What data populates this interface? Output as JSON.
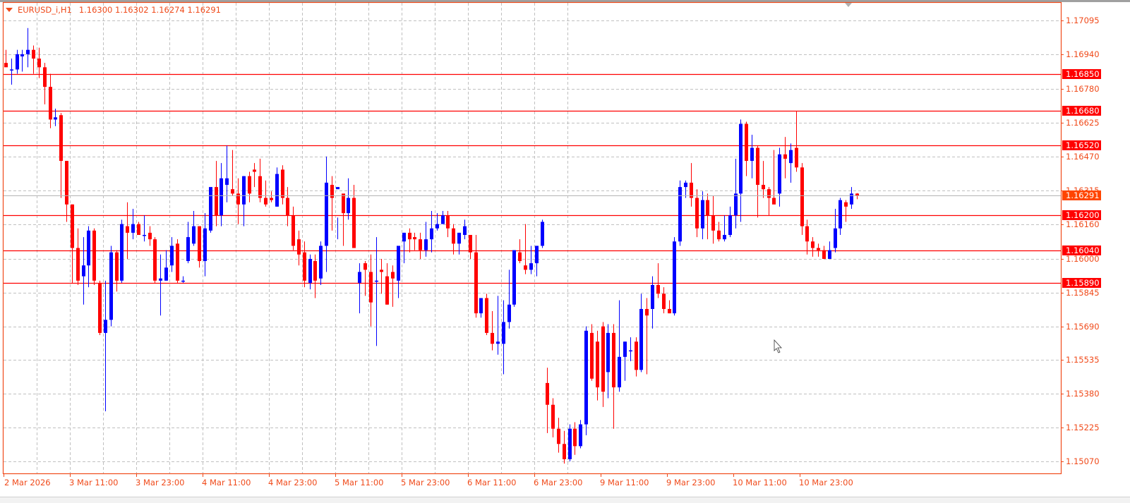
{
  "window": {
    "symbol": "EURUSD_i",
    "timeframe": "H1",
    "title_label": "EURUSD_i,H1",
    "ohlc_label": "1.16300 1.16302 1.16274 1.16291",
    "open": "1.16300",
    "high": "1.16302",
    "low": "1.16274",
    "close": "1.16291"
  },
  "colors": {
    "frame": "#f04a1a",
    "bull": "#0000ff",
    "bear": "#ff0000",
    "level_line": "#ff0000",
    "level_label_bg": "#ff0000",
    "bid_label_bg": "#ff4500",
    "grid": "#c0c0c0",
    "bid_line": "#b4b4b4"
  },
  "chart_data": {
    "type": "candlestick",
    "title": "EURUSD_i,H1",
    "xlabel": "",
    "ylabel": "",
    "ylim": [
      1.1499,
      1.1721
    ],
    "grid": true,
    "y_ticks": [
      "1.17095",
      "1.16940",
      "1.16780",
      "1.16625",
      "1.16470",
      "1.16315",
      "1.16160",
      "1.16000",
      "1.15845",
      "1.15690",
      "1.15535",
      "1.15380",
      "1.15225",
      "1.15070"
    ],
    "x_ticks": [
      "2 Mar 2026",
      "3 Mar 11:00",
      "3 Mar 23:00",
      "4 Mar 11:00",
      "4 Mar 23:00",
      "5 Mar 11:00",
      "5 Mar 23:00",
      "6 Mar 11:00",
      "6 Mar 23:00",
      "9 Mar 11:00",
      "9 Mar 23:00",
      "10 Mar 11:00",
      "10 Mar 23:00"
    ],
    "horizontal_levels": [
      "1.16850",
      "1.16680",
      "1.16520",
      "1.16200",
      "1.16040",
      "1.15890"
    ],
    "current_price": "1.16291",
    "candles": [
      {
        "o": 1.169,
        "h": 1.1696,
        "l": 1.1689,
        "c": 1.1688
      },
      {
        "o": 1.1687,
        "h": 1.1692,
        "l": 1.168,
        "c": 1.1687
      },
      {
        "o": 1.1687,
        "h": 1.1696,
        "l": 1.1685,
        "c": 1.1694
      },
      {
        "o": 1.1693,
        "h": 1.1696,
        "l": 1.1686,
        "c": 1.1694
      },
      {
        "o": 1.1694,
        "h": 1.1706,
        "l": 1.1688,
        "c": 1.1696
      },
      {
        "o": 1.1696,
        "h": 1.1698,
        "l": 1.1685,
        "c": 1.1692
      },
      {
        "o": 1.1692,
        "h": 1.1697,
        "l": 1.1683,
        "c": 1.1688
      },
      {
        "o": 1.1688,
        "h": 1.169,
        "l": 1.1671,
        "c": 1.1679
      },
      {
        "o": 1.1679,
        "h": 1.1685,
        "l": 1.166,
        "c": 1.1664
      },
      {
        "o": 1.1664,
        "h": 1.1669,
        "l": 1.1661,
        "c": 1.1665
      },
      {
        "o": 1.1666,
        "h": 1.1667,
        "l": 1.1628,
        "c": 1.1645
      },
      {
        "o": 1.1645,
        "h": 1.1645,
        "l": 1.1617,
        "c": 1.1625
      },
      {
        "o": 1.1625,
        "h": 1.1625,
        "l": 1.1589,
        "c": 1.1605
      },
      {
        "o": 1.1605,
        "h": 1.1614,
        "l": 1.1588,
        "c": 1.159
      },
      {
        "o": 1.1592,
        "h": 1.161,
        "l": 1.1579,
        "c": 1.1597
      },
      {
        "o": 1.1597,
        "h": 1.1615,
        "l": 1.1587,
        "c": 1.1613
      },
      {
        "o": 1.1613,
        "h": 1.1614,
        "l": 1.1588,
        "c": 1.159
      },
      {
        "o": 1.1589,
        "h": 1.159,
        "l": 1.1565,
        "c": 1.1566
      },
      {
        "o": 1.1566,
        "h": 1.159,
        "l": 1.153,
        "c": 1.1572
      },
      {
        "o": 1.1572,
        "h": 1.1606,
        "l": 1.1569,
        "c": 1.1603
      },
      {
        "o": 1.1603,
        "h": 1.1604,
        "l": 1.1585,
        "c": 1.159
      },
      {
        "o": 1.159,
        "h": 1.1618,
        "l": 1.1589,
        "c": 1.1616
      },
      {
        "o": 1.1615,
        "h": 1.1626,
        "l": 1.16,
        "c": 1.1612
      },
      {
        "o": 1.1612,
        "h": 1.1623,
        "l": 1.1609,
        "c": 1.1616
      },
      {
        "o": 1.1616,
        "h": 1.1617,
        "l": 1.1611,
        "c": 1.1611
      },
      {
        "o": 1.1611,
        "h": 1.162,
        "l": 1.1608,
        "c": 1.1611
      },
      {
        "o": 1.1612,
        "h": 1.1615,
        "l": 1.1606,
        "c": 1.1609
      },
      {
        "o": 1.1609,
        "h": 1.161,
        "l": 1.1589,
        "c": 1.159
      },
      {
        "o": 1.159,
        "h": 1.1602,
        "l": 1.1574,
        "c": 1.1591
      },
      {
        "o": 1.159,
        "h": 1.1604,
        "l": 1.159,
        "c": 1.1596
      },
      {
        "o": 1.1597,
        "h": 1.161,
        "l": 1.1594,
        "c": 1.1606
      },
      {
        "o": 1.1607,
        "h": 1.1609,
        "l": 1.1589,
        "c": 1.159
      },
      {
        "o": 1.159,
        "h": 1.1592,
        "l": 1.1589,
        "c": 1.159
      },
      {
        "o": 1.1599,
        "h": 1.1617,
        "l": 1.1598,
        "c": 1.161
      },
      {
        "o": 1.1607,
        "h": 1.1622,
        "l": 1.1606,
        "c": 1.1615
      },
      {
        "o": 1.1615,
        "h": 1.1615,
        "l": 1.1596,
        "c": 1.1599
      },
      {
        "o": 1.1599,
        "h": 1.1621,
        "l": 1.1592,
        "c": 1.1614
      },
      {
        "o": 1.1613,
        "h": 1.1628,
        "l": 1.1612,
        "c": 1.1633
      },
      {
        "o": 1.1633,
        "h": 1.1645,
        "l": 1.1615,
        "c": 1.162
      },
      {
        "o": 1.162,
        "h": 1.1644,
        "l": 1.1615,
        "c": 1.1637
      },
      {
        "o": 1.1634,
        "h": 1.1652,
        "l": 1.1626,
        "c": 1.1637
      },
      {
        "o": 1.1632,
        "h": 1.165,
        "l": 1.1629,
        "c": 1.163
      },
      {
        "o": 1.163,
        "h": 1.1637,
        "l": 1.1616,
        "c": 1.1625
      },
      {
        "o": 1.1625,
        "h": 1.1638,
        "l": 1.1615,
        "c": 1.1638
      },
      {
        "o": 1.1638,
        "h": 1.164,
        "l": 1.1626,
        "c": 1.163
      },
      {
        "o": 1.1641,
        "h": 1.1644,
        "l": 1.1633,
        "c": 1.164
      },
      {
        "o": 1.1638,
        "h": 1.1646,
        "l": 1.1626,
        "c": 1.1628
      },
      {
        "o": 1.1628,
        "h": 1.1636,
        "l": 1.1624,
        "c": 1.1625
      },
      {
        "o": 1.1628,
        "h": 1.1631,
        "l": 1.1626,
        "c": 1.1627
      },
      {
        "o": 1.1624,
        "h": 1.1642,
        "l": 1.1624,
        "c": 1.1639
      },
      {
        "o": 1.1641,
        "h": 1.1643,
        "l": 1.1625,
        "c": 1.1628
      },
      {
        "o": 1.1628,
        "h": 1.1633,
        "l": 1.1615,
        "c": 1.162
      },
      {
        "o": 1.162,
        "h": 1.1624,
        "l": 1.1604,
        "c": 1.1606
      },
      {
        "o": 1.1609,
        "h": 1.1613,
        "l": 1.1597,
        "c": 1.1602
      },
      {
        "o": 1.1603,
        "h": 1.1608,
        "l": 1.1587,
        "c": 1.159
      },
      {
        "o": 1.1589,
        "h": 1.1602,
        "l": 1.1586,
        "c": 1.16
      },
      {
        "o": 1.1599,
        "h": 1.1602,
        "l": 1.1582,
        "c": 1.159
      },
      {
        "o": 1.1591,
        "h": 1.1608,
        "l": 1.1588,
        "c": 1.1606
      },
      {
        "o": 1.1606,
        "h": 1.1647,
        "l": 1.1594,
        "c": 1.1635
      },
      {
        "o": 1.1634,
        "h": 1.1638,
        "l": 1.1613,
        "c": 1.1628
      },
      {
        "o": 1.1632,
        "h": 1.1619,
        "l": 1.1609,
        "c": 1.1633
      },
      {
        "o": 1.163,
        "h": 1.1627,
        "l": 1.1606,
        "c": 1.1621
      },
      {
        "o": 1.1621,
        "h": 1.1637,
        "l": 1.1618,
        "c": 1.1628
      },
      {
        "o": 1.1628,
        "h": 1.1634,
        "l": 1.1618,
        "c": 1.1605
      },
      {
        "o": 1.1589,
        "h": 1.1598,
        "l": 1.1575,
        "c": 1.1594
      },
      {
        "o": 1.1598,
        "h": 1.1599,
        "l": 1.1583,
        "c": 1.1595
      },
      {
        "o": 1.1594,
        "h": 1.1602,
        "l": 1.1569,
        "c": 1.158
      },
      {
        "o": 1.159,
        "h": 1.161,
        "l": 1.156,
        "c": 1.159
      },
      {
        "o": 1.1595,
        "h": 1.16,
        "l": 1.1584,
        "c": 1.1594
      },
      {
        "o": 1.1592,
        "h": 1.1598,
        "l": 1.1579,
        "c": 1.1579
      },
      {
        "o": 1.1594,
        "h": 1.1597,
        "l": 1.1578,
        "c": 1.1591
      },
      {
        "o": 1.159,
        "h": 1.1603,
        "l": 1.1582,
        "c": 1.1606
      },
      {
        "o": 1.1608,
        "h": 1.1612,
        "l": 1.1598,
        "c": 1.1612
      },
      {
        "o": 1.1612,
        "h": 1.1614,
        "l": 1.1603,
        "c": 1.1609
      },
      {
        "o": 1.161,
        "h": 1.1612,
        "l": 1.1604,
        "c": 1.1609
      },
      {
        "o": 1.1609,
        "h": 1.1612,
        "l": 1.16,
        "c": 1.1604
      },
      {
        "o": 1.1604,
        "h": 1.1617,
        "l": 1.1601,
        "c": 1.1609
      },
      {
        "o": 1.1609,
        "h": 1.1622,
        "l": 1.1603,
        "c": 1.1614
      },
      {
        "o": 1.1614,
        "h": 1.1621,
        "l": 1.1613,
        "c": 1.1616
      },
      {
        "o": 1.1616,
        "h": 1.1622,
        "l": 1.1616,
        "c": 1.162
      },
      {
        "o": 1.162,
        "h": 1.1622,
        "l": 1.161,
        "c": 1.1614
      },
      {
        "o": 1.1614,
        "h": 1.1616,
        "l": 1.1602,
        "c": 1.1607
      },
      {
        "o": 1.1607,
        "h": 1.1612,
        "l": 1.1602,
        "c": 1.1612
      },
      {
        "o": 1.1611,
        "h": 1.1618,
        "l": 1.1609,
        "c": 1.1615
      },
      {
        "o": 1.1611,
        "h": 1.1611,
        "l": 1.16,
        "c": 1.1603
      },
      {
        "o": 1.1603,
        "h": 1.1611,
        "l": 1.1573,
        "c": 1.1575
      },
      {
        "o": 1.1575,
        "h": 1.1579,
        "l": 1.1573,
        "c": 1.1582
      },
      {
        "o": 1.1582,
        "h": 1.1584,
        "l": 1.1565,
        "c": 1.1566
      },
      {
        "o": 1.1566,
        "h": 1.1576,
        "l": 1.1558,
        "c": 1.1561
      },
      {
        "o": 1.1561,
        "h": 1.1583,
        "l": 1.1556,
        "c": 1.1562
      },
      {
        "o": 1.1561,
        "h": 1.1581,
        "l": 1.1547,
        "c": 1.1571
      },
      {
        "o": 1.1571,
        "h": 1.1595,
        "l": 1.1568,
        "c": 1.1579
      },
      {
        "o": 1.1579,
        "h": 1.1604,
        "l": 1.1578,
        "c": 1.1604
      },
      {
        "o": 1.1603,
        "h": 1.1609,
        "l": 1.1598,
        "c": 1.1599
      },
      {
        "o": 1.1597,
        "h": 1.1616,
        "l": 1.1593,
        "c": 1.1595
      },
      {
        "o": 1.1595,
        "h": 1.1606,
        "l": 1.1593,
        "c": 1.1598
      },
      {
        "o": 1.1598,
        "h": 1.1606,
        "l": 1.1592,
        "c": 1.1606
      },
      {
        "o": 1.1606,
        "h": 1.1618,
        "l": 1.1605,
        "c": 1.1617
      },
      {
        "o": 1.1543,
        "h": 1.155,
        "l": 1.152,
        "c": 1.1533
      },
      {
        "o": 1.1533,
        "h": 1.1536,
        "l": 1.1518,
        "c": 1.1522
      },
      {
        "o": 1.1522,
        "h": 1.1527,
        "l": 1.1511,
        "c": 1.1515
      },
      {
        "o": 1.1515,
        "h": 1.1521,
        "l": 1.1506,
        "c": 1.1508
      },
      {
        "o": 1.1508,
        "h": 1.1524,
        "l": 1.1507,
        "c": 1.1522
      },
      {
        "o": 1.1522,
        "h": 1.1525,
        "l": 1.151,
        "c": 1.1514
      },
      {
        "o": 1.1514,
        "h": 1.1526,
        "l": 1.1513,
        "c": 1.1524
      },
      {
        "o": 1.1524,
        "h": 1.1569,
        "l": 1.1519,
        "c": 1.1567
      },
      {
        "o": 1.1566,
        "h": 1.157,
        "l": 1.1544,
        "c": 1.1545
      },
      {
        "o": 1.1562,
        "h": 1.1567,
        "l": 1.1535,
        "c": 1.1541
      },
      {
        "o": 1.1569,
        "h": 1.1571,
        "l": 1.1532,
        "c": 1.1539
      },
      {
        "o": 1.1548,
        "h": 1.157,
        "l": 1.1536,
        "c": 1.1566
      },
      {
        "o": 1.1566,
        "h": 1.157,
        "l": 1.1522,
        "c": 1.1541
      },
      {
        "o": 1.1541,
        "h": 1.1581,
        "l": 1.1539,
        "c": 1.1555
      },
      {
        "o": 1.1555,
        "h": 1.1562,
        "l": 1.1544,
        "c": 1.1562
      },
      {
        "o": 1.1558,
        "h": 1.1564,
        "l": 1.1553,
        "c": 1.1558
      },
      {
        "o": 1.1562,
        "h": 1.1564,
        "l": 1.1546,
        "c": 1.1549
      },
      {
        "o": 1.1549,
        "h": 1.1584,
        "l": 1.1548,
        "c": 1.1577
      },
      {
        "o": 1.1577,
        "h": 1.1582,
        "l": 1.1547,
        "c": 1.1574
      },
      {
        "o": 1.1577,
        "h": 1.1592,
        "l": 1.1568,
        "c": 1.1588
      },
      {
        "o": 1.1588,
        "h": 1.1598,
        "l": 1.1582,
        "c": 1.1584
      },
      {
        "o": 1.1584,
        "h": 1.1587,
        "l": 1.1575,
        "c": 1.1577
      },
      {
        "o": 1.1577,
        "h": 1.1581,
        "l": 1.1575,
        "c": 1.1575
      },
      {
        "o": 1.1575,
        "h": 1.161,
        "l": 1.1574,
        "c": 1.1608
      },
      {
        "o": 1.1608,
        "h": 1.1636,
        "l": 1.1606,
        "c": 1.1633
      },
      {
        "o": 1.1633,
        "h": 1.1636,
        "l": 1.1628,
        "c": 1.1635
      },
      {
        "o": 1.1635,
        "h": 1.1644,
        "l": 1.1624,
        "c": 1.1628
      },
      {
        "o": 1.1628,
        "h": 1.1632,
        "l": 1.161,
        "c": 1.1614
      },
      {
        "o": 1.1614,
        "h": 1.1631,
        "l": 1.1609,
        "c": 1.1627
      },
      {
        "o": 1.1627,
        "h": 1.163,
        "l": 1.1609,
        "c": 1.162
      },
      {
        "o": 1.162,
        "h": 1.1629,
        "l": 1.1607,
        "c": 1.1613
      },
      {
        "o": 1.1613,
        "h": 1.1617,
        "l": 1.1608,
        "c": 1.1609
      },
      {
        "o": 1.1609,
        "h": 1.162,
        "l": 1.1608,
        "c": 1.1611
      },
      {
        "o": 1.1611,
        "h": 1.1624,
        "l": 1.161,
        "c": 1.162
      },
      {
        "o": 1.162,
        "h": 1.1646,
        "l": 1.1614,
        "c": 1.163
      },
      {
        "o": 1.163,
        "h": 1.1664,
        "l": 1.1617,
        "c": 1.1662
      },
      {
        "o": 1.1662,
        "h": 1.1663,
        "l": 1.1638,
        "c": 1.1645
      },
      {
        "o": 1.1645,
        "h": 1.1657,
        "l": 1.1637,
        "c": 1.1651
      },
      {
        "o": 1.1651,
        "h": 1.1652,
        "l": 1.1619,
        "c": 1.1634
      },
      {
        "o": 1.1634,
        "h": 1.1645,
        "l": 1.1628,
        "c": 1.1632
      },
      {
        "o": 1.1632,
        "h": 1.1633,
        "l": 1.162,
        "c": 1.1628
      },
      {
        "o": 1.1628,
        "h": 1.165,
        "l": 1.1626,
        "c": 1.1625
      },
      {
        "o": 1.163,
        "h": 1.1651,
        "l": 1.1624,
        "c": 1.1648
      },
      {
        "o": 1.1648,
        "h": 1.1656,
        "l": 1.1637,
        "c": 1.1646
      },
      {
        "o": 1.1644,
        "h": 1.1653,
        "l": 1.1635,
        "c": 1.165
      },
      {
        "o": 1.1651,
        "h": 1.1668,
        "l": 1.164,
        "c": 1.1642
      },
      {
        "o": 1.1642,
        "h": 1.1644,
        "l": 1.1611,
        "c": 1.1615
      },
      {
        "o": 1.1615,
        "h": 1.1618,
        "l": 1.1602,
        "c": 1.1608
      },
      {
        "o": 1.1608,
        "h": 1.161,
        "l": 1.1601,
        "c": 1.1605
      },
      {
        "o": 1.1605,
        "h": 1.1607,
        "l": 1.1601,
        "c": 1.1604
      },
      {
        "o": 1.1604,
        "h": 1.1606,
        "l": 1.16,
        "c": 1.16
      },
      {
        "o": 1.16,
        "h": 1.1608,
        "l": 1.16,
        "c": 1.1604
      },
      {
        "o": 1.1605,
        "h": 1.1623,
        "l": 1.1603,
        "c": 1.1614
      },
      {
        "o": 1.1614,
        "h": 1.1628,
        "l": 1.1611,
        "c": 1.1627
      },
      {
        "o": 1.1626,
        "h": 1.1627,
        "l": 1.1617,
        "c": 1.1624
      },
      {
        "o": 1.1625,
        "h": 1.1633,
        "l": 1.1623,
        "c": 1.163
      },
      {
        "o": 1.163,
        "h": 1.16302,
        "l": 1.16274,
        "c": 1.16291
      }
    ]
  }
}
